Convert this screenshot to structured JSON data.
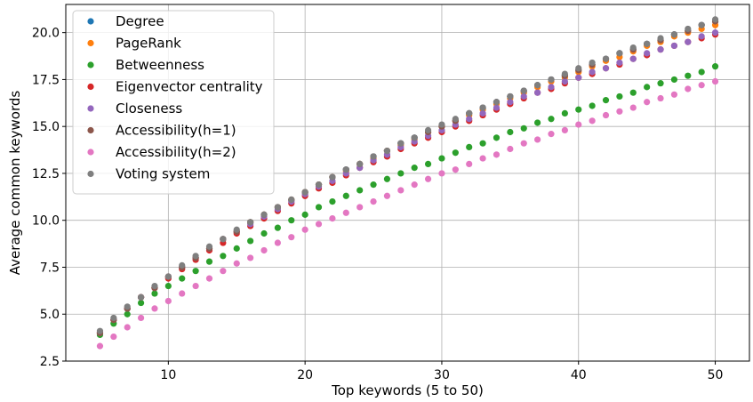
{
  "chart_data": {
    "type": "scatter",
    "xlabel": "Top keywords (5 to 50)",
    "ylabel": "Average common keywords",
    "xlim": [
      2.5,
      52.5
    ],
    "ylim": [
      2.5,
      21.5
    ],
    "xticks": [
      10,
      20,
      30,
      40,
      50
    ],
    "yticks": [
      2.5,
      5.0,
      7.5,
      10.0,
      12.5,
      15.0,
      17.5,
      20.0
    ],
    "xtick_labels": [
      "10",
      "20",
      "30",
      "40",
      "50"
    ],
    "ytick_labels": [
      "2.5",
      "5.0",
      "7.5",
      "10.0",
      "12.5",
      "15.0",
      "17.5",
      "20.0"
    ],
    "grid": true,
    "legend_position": "upper-left",
    "x": [
      5,
      6,
      7,
      8,
      9,
      10,
      11,
      12,
      13,
      14,
      15,
      16,
      17,
      18,
      19,
      20,
      21,
      22,
      23,
      24,
      25,
      26,
      27,
      28,
      29,
      30,
      31,
      32,
      33,
      34,
      35,
      36,
      37,
      38,
      39,
      40,
      41,
      42,
      43,
      44,
      45,
      46,
      47,
      48,
      49,
      50
    ],
    "series": [
      {
        "name": "Degree",
        "color": "#1f77b4",
        "values": [
          4.0,
          4.7,
          5.3,
          5.9,
          6.4,
          7.0,
          7.5,
          8.0,
          8.5,
          9.0,
          9.4,
          9.9,
          10.3,
          10.7,
          11.1,
          11.5,
          11.9,
          12.3,
          12.7,
          13.0,
          13.4,
          13.7,
          14.1,
          14.4,
          14.7,
          15.0,
          15.3,
          15.7,
          16.0,
          16.3,
          16.6,
          16.9,
          17.2,
          17.5,
          17.7,
          18.0,
          18.3,
          18.6,
          18.9,
          19.1,
          19.4,
          19.6,
          19.9,
          20.1,
          20.4,
          20.6
        ]
      },
      {
        "name": "PageRank",
        "color": "#ff7f0e",
        "values": [
          4.0,
          4.7,
          5.3,
          5.9,
          6.4,
          7.0,
          7.5,
          8.0,
          8.5,
          9.0,
          9.4,
          9.9,
          10.3,
          10.7,
          11.1,
          11.5,
          11.9,
          12.3,
          12.6,
          13.0,
          13.3,
          13.7,
          14.0,
          14.3,
          14.7,
          15.0,
          15.3,
          15.6,
          15.9,
          16.2,
          16.5,
          16.8,
          17.1,
          17.4,
          17.6,
          17.9,
          18.2,
          18.5,
          18.7,
          19.0,
          19.3,
          19.5,
          19.8,
          20.0,
          20.2,
          20.4
        ]
      },
      {
        "name": "Betweenness",
        "color": "#2ca02c",
        "values": [
          3.9,
          4.5,
          5.0,
          5.6,
          6.1,
          6.5,
          6.9,
          7.3,
          7.8,
          8.1,
          8.5,
          8.9,
          9.3,
          9.6,
          10.0,
          10.3,
          10.7,
          11.0,
          11.3,
          11.6,
          11.9,
          12.2,
          12.5,
          12.8,
          13.0,
          13.3,
          13.6,
          13.9,
          14.1,
          14.4,
          14.7,
          14.9,
          15.2,
          15.4,
          15.7,
          15.9,
          16.1,
          16.4,
          16.6,
          16.8,
          17.1,
          17.3,
          17.5,
          17.7,
          17.9,
          18.2
        ]
      },
      {
        "name": "Eigenvector centrality",
        "color": "#d62728",
        "values": [
          4.0,
          4.7,
          5.3,
          5.9,
          6.4,
          6.9,
          7.4,
          7.9,
          8.4,
          8.8,
          9.3,
          9.7,
          10.1,
          10.5,
          10.9,
          11.3,
          11.7,
          12.0,
          12.4,
          12.8,
          13.1,
          13.4,
          13.8,
          14.1,
          14.4,
          14.7,
          15.0,
          15.3,
          15.6,
          15.9,
          16.2,
          16.5,
          16.8,
          17.0,
          17.3,
          17.6,
          17.8,
          18.1,
          18.3,
          18.6,
          18.8,
          19.1,
          19.3,
          19.5,
          19.7,
          19.9
        ]
      },
      {
        "name": "Closeness",
        "color": "#9467bd",
        "values": [
          4.0,
          4.7,
          5.3,
          5.9,
          6.4,
          7.0,
          7.5,
          8.0,
          8.5,
          9.0,
          9.4,
          9.8,
          10.2,
          10.6,
          11.0,
          11.4,
          11.8,
          12.1,
          12.5,
          12.8,
          13.2,
          13.5,
          13.9,
          14.2,
          14.5,
          14.8,
          15.1,
          15.4,
          15.7,
          16.0,
          16.3,
          16.6,
          16.8,
          17.1,
          17.4,
          17.6,
          17.9,
          18.1,
          18.4,
          18.6,
          18.9,
          19.1,
          19.3,
          19.5,
          19.8,
          20.0
        ]
      },
      {
        "name": "Accessibility(h=1)",
        "color": "#8c564b",
        "values": [
          4.0,
          4.7,
          5.3,
          5.9,
          6.4,
          7.0,
          7.5,
          8.0,
          8.5,
          9.0,
          9.4,
          9.9,
          10.3,
          10.7,
          11.1,
          11.5,
          11.9,
          12.3,
          12.7,
          13.0,
          13.4,
          13.7,
          14.1,
          14.4,
          14.7,
          15.0,
          15.3,
          15.7,
          16.0,
          16.3,
          16.6,
          16.9,
          17.2,
          17.5,
          17.7,
          18.0,
          18.3,
          18.6,
          18.9,
          19.1,
          19.4,
          19.6,
          19.9,
          20.1,
          20.4,
          20.6
        ]
      },
      {
        "name": "Accessibility(h=2)",
        "color": "#e377c2",
        "values": [
          3.3,
          3.8,
          4.3,
          4.8,
          5.3,
          5.7,
          6.1,
          6.5,
          6.9,
          7.3,
          7.7,
          8.0,
          8.4,
          8.8,
          9.1,
          9.5,
          9.8,
          10.1,
          10.4,
          10.7,
          11.0,
          11.3,
          11.6,
          11.9,
          12.2,
          12.5,
          12.7,
          13.0,
          13.3,
          13.5,
          13.8,
          14.1,
          14.3,
          14.6,
          14.8,
          15.1,
          15.3,
          15.6,
          15.8,
          16.0,
          16.3,
          16.5,
          16.7,
          17.0,
          17.2,
          17.4
        ]
      },
      {
        "name": "Voting system",
        "color": "#7f7f7f",
        "values": [
          4.1,
          4.8,
          5.4,
          5.9,
          6.5,
          7.0,
          7.6,
          8.1,
          8.6,
          9.0,
          9.5,
          9.9,
          10.3,
          10.7,
          11.1,
          11.5,
          11.9,
          12.3,
          12.7,
          13.0,
          13.4,
          13.7,
          14.1,
          14.4,
          14.8,
          15.1,
          15.4,
          15.7,
          16.0,
          16.3,
          16.6,
          16.9,
          17.2,
          17.5,
          17.8,
          18.1,
          18.4,
          18.6,
          18.9,
          19.2,
          19.4,
          19.7,
          19.9,
          20.2,
          20.4,
          20.7
        ]
      }
    ]
  }
}
